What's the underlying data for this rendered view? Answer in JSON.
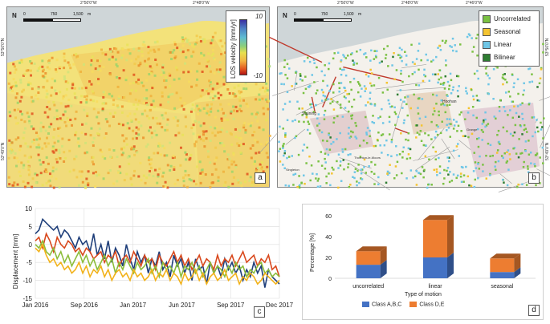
{
  "panel_a": {
    "letter": "a",
    "scale_labels": [
      "0",
      "750",
      "1,500",
      "m"
    ],
    "north_label": "N",
    "top_coords": [
      "2°50'0\"W",
      "2°48'0\"W"
    ],
    "left_coords": [
      "53°50'0\"N",
      "53°49'0\"N"
    ],
    "legend": {
      "title": "LOS velocity [mm/yr]",
      "max_label": "10",
      "min_label": "-10"
    }
  },
  "panel_b": {
    "letter": "b",
    "scale_labels": [
      "0",
      "750",
      "1,500",
      "m"
    ],
    "north_label": "N",
    "top_coords": [
      "2°50'0\"W",
      "2°48'0\"W",
      "2°46'0\"W"
    ],
    "right_coords": [
      "53°50'0\"N",
      "53°49'0\"N"
    ],
    "legend": [
      {
        "label": "Uncorrelated",
        "color": "#7ac143"
      },
      {
        "label": "Seasonal",
        "color": "#f4c430"
      },
      {
        "label": "Linear",
        "color": "#6ec6e6"
      },
      {
        "label": "Bilinear",
        "color": "#2e7d32"
      }
    ],
    "map_labels": [
      "Staining",
      "Hoohan",
      "Thornton-le-Moors",
      "Grange",
      "Singleton"
    ]
  },
  "panel_c": {
    "letter": "c",
    "chart_data": {
      "type": "line",
      "ylabel": "Displacement [mm]",
      "xlabel": "",
      "x_ticks": [
        "Jan 2016",
        "Sep 2016",
        "Jan 2017",
        "Jun 2017",
        "Sep 2017",
        "Dec 2017"
      ],
      "x_start": "2016-01-01",
      "x_end": "2017-12-15",
      "ylim": [
        -15,
        10
      ],
      "y_ticks": [
        10,
        5,
        0,
        -5,
        -10,
        -15
      ],
      "grid": true,
      "series": [
        {
          "color": "#1f3f7a",
          "values": [
            3,
            4,
            7,
            6,
            5,
            4,
            5,
            2,
            4,
            3,
            1,
            -1,
            2,
            0,
            1,
            -2,
            3,
            -3,
            0,
            -4,
            1,
            -5,
            -1,
            -3,
            -6,
            0,
            -4,
            -7,
            -2,
            -5,
            -3,
            -8,
            -4,
            -6,
            -2,
            -7,
            -5,
            -9,
            -3,
            -6,
            -4,
            -8,
            -5,
            -10,
            -4,
            -7,
            -6,
            -11,
            -5,
            -8,
            -6,
            -9,
            -4,
            -7,
            -5,
            -8,
            -6,
            -10,
            -7,
            -9,
            -5,
            -8,
            -6,
            -12,
            -7,
            -9,
            -10,
            -11
          ]
        },
        {
          "color": "#d9481c",
          "values": [
            1,
            2,
            -1,
            3,
            1,
            -2,
            2,
            0,
            -1,
            1,
            0,
            -2,
            -1,
            -3,
            -1,
            -2,
            -4,
            -3,
            -2,
            -5,
            -3,
            -4,
            -2,
            -6,
            -4,
            -3,
            -5,
            -2,
            -4,
            -6,
            -3,
            -5,
            -4,
            -7,
            -3,
            -5,
            -6,
            -4,
            -2,
            -5,
            -3,
            -6,
            -4,
            -7,
            -5,
            -3,
            -6,
            -4,
            -5,
            -7,
            -3,
            -6,
            -4,
            -5,
            -3,
            -6,
            -4,
            -2,
            -5,
            -4,
            -3,
            -6,
            -4,
            -5,
            -3,
            -7,
            -6,
            -9
          ]
        },
        {
          "color": "#8cbd3a",
          "values": [
            0,
            -1,
            1,
            -2,
            -3,
            -1,
            -4,
            -2,
            -5,
            -3,
            -6,
            -4,
            -2,
            -5,
            -3,
            -6,
            -4,
            -7,
            -5,
            -3,
            -6,
            -4,
            -8,
            -5,
            -7,
            -4,
            -6,
            -8,
            -5,
            -7,
            -6,
            -4,
            -8,
            -6,
            -9,
            -5,
            -7,
            -6,
            -8,
            -5,
            -9,
            -6,
            -7,
            -5,
            -8,
            -6,
            -9,
            -7,
            -5,
            -8,
            -6,
            -7,
            -9,
            -6,
            -8,
            -5,
            -7,
            -6,
            -9,
            -7,
            -8,
            -6,
            -5,
            -8,
            -7,
            -9,
            -8,
            -9
          ]
        },
        {
          "color": "#f2b21a",
          "values": [
            -1,
            -2,
            0,
            -3,
            -5,
            -4,
            -6,
            -5,
            -7,
            -6,
            -8,
            -7,
            -5,
            -8,
            -6,
            -9,
            -7,
            -8,
            -6,
            -9,
            -7,
            -10,
            -8,
            -7,
            -9,
            -8,
            -10,
            -7,
            -9,
            -8,
            -10,
            -9,
            -7,
            -10,
            -8,
            -9,
            -7,
            -10,
            -8,
            -9,
            -11,
            -8,
            -10,
            -9,
            -7,
            -10,
            -8,
            -11,
            -9,
            -8,
            -10,
            -9,
            -7,
            -10,
            -9,
            -8,
            -11,
            -9,
            -10,
            -8,
            -9,
            -11,
            -10,
            -8,
            -9,
            -10,
            -11,
            -10
          ]
        }
      ]
    }
  },
  "panel_d": {
    "letter": "d",
    "chart_data": {
      "type": "bar",
      "stacked": true,
      "categories": [
        "uncorrelated",
        "linear",
        "seasonal"
      ],
      "xlabel": "Type of motion",
      "ylabel": "Percentage [%]",
      "ylim": [
        0,
        60
      ],
      "y_ticks": [
        0,
        20,
        40,
        60
      ],
      "series": [
        {
          "name": "Class A,B,C",
          "color": "#4472c4",
          "values": [
            13,
            20,
            6
          ]
        },
        {
          "name": "Class D,E",
          "color": "#ed7d31",
          "values": [
            13,
            36,
            13
          ]
        }
      ]
    }
  }
}
